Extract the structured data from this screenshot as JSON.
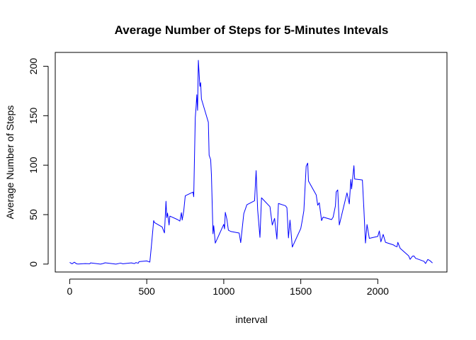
{
  "chart_data": {
    "type": "line",
    "title": "Average Number of Steps for 5-Minutes Intevals",
    "xlabel": "interval",
    "ylabel": "Average Number of Steps",
    "xlim": [
      -94,
      2449
    ],
    "ylim": [
      -8,
      214
    ],
    "x_ticks": [
      0,
      500,
      1000,
      1500,
      2000
    ],
    "y_ticks": [
      0,
      50,
      100,
      150,
      200
    ],
    "grid": false,
    "legend": "none",
    "colors": {
      "line": "#0000ff",
      "axis": "#000000"
    },
    "series": [
      {
        "x": [
          0,
          15,
          30,
          45,
          55,
          100,
          130,
          135,
          200,
          215,
          230,
          300,
          330,
          345,
          400,
          420,
          430,
          445,
          450,
          500,
          520,
          530,
          545,
          550,
          600,
          615,
          625,
          630,
          635,
          645,
          650,
          700,
          715,
          725,
          730,
          740,
          750,
          800,
          805,
          815,
          820,
          825,
          830,
          835,
          845,
          850,
          855,
          900,
          905,
          915,
          920,
          930,
          935,
          945,
          1000,
          1005,
          1010,
          1020,
          1030,
          1045,
          1100,
          1110,
          1130,
          1150,
          1200,
          1210,
          1220,
          1235,
          1245,
          1300,
          1315,
          1330,
          1345,
          1355,
          1400,
          1410,
          1420,
          1430,
          1445,
          1500,
          1510,
          1520,
          1535,
          1545,
          1550,
          1600,
          1610,
          1620,
          1635,
          1645,
          1700,
          1710,
          1725,
          1730,
          1740,
          1750,
          1800,
          1815,
          1825,
          1830,
          1845,
          1850,
          1900,
          1910,
          1920,
          1930,
          1945,
          2000,
          2010,
          2020,
          2035,
          2050,
          2100,
          2115,
          2125,
          2130,
          2145,
          2200,
          2210,
          2225,
          2235,
          2245,
          2300,
          2310,
          2325,
          2340,
          2355
        ],
        "y": [
          1.7,
          0.3,
          1.9,
          0.2,
          0.1,
          0.5,
          0.3,
          1.2,
          0,
          0.5,
          1.3,
          0,
          1,
          0.3,
          1.2,
          0.5,
          1.5,
          0.9,
          2.5,
          3.2,
          2,
          17.9,
          44,
          42,
          37.5,
          31.5,
          63.5,
          47,
          51.5,
          39.5,
          48.5,
          45,
          43.5,
          52,
          44.5,
          53.5,
          69,
          72.8,
          68.1,
          148,
          158.3,
          171.2,
          155.4,
          206,
          179.6,
          183.4,
          166.9,
          143.4,
          110,
          105.6,
          90,
          30.7,
          38.8,
          21.2,
          40.2,
          35.6,
          52.3,
          45.5,
          34.3,
          33,
          31.4,
          21.7,
          51,
          60,
          64,
          94.5,
          55,
          27,
          67,
          58,
          39.5,
          46.2,
          25.3,
          61.3,
          59,
          57,
          26.5,
          44.5,
          17.2,
          36,
          44.5,
          54,
          99,
          102.1,
          83.9,
          70,
          59.5,
          62,
          44,
          47.5,
          45,
          47.4,
          58.9,
          73,
          75,
          39.5,
          72,
          60.8,
          85.6,
          76,
          99.5,
          86,
          85,
          54.7,
          21.3,
          40,
          26,
          28,
          33.5,
          22.5,
          30,
          22,
          19.5,
          18,
          17.5,
          22,
          16,
          8.4,
          4.8,
          8,
          8.2,
          5.9,
          2.8,
          0.6,
          4.7,
          3.3,
          1.1
        ]
      }
    ]
  }
}
